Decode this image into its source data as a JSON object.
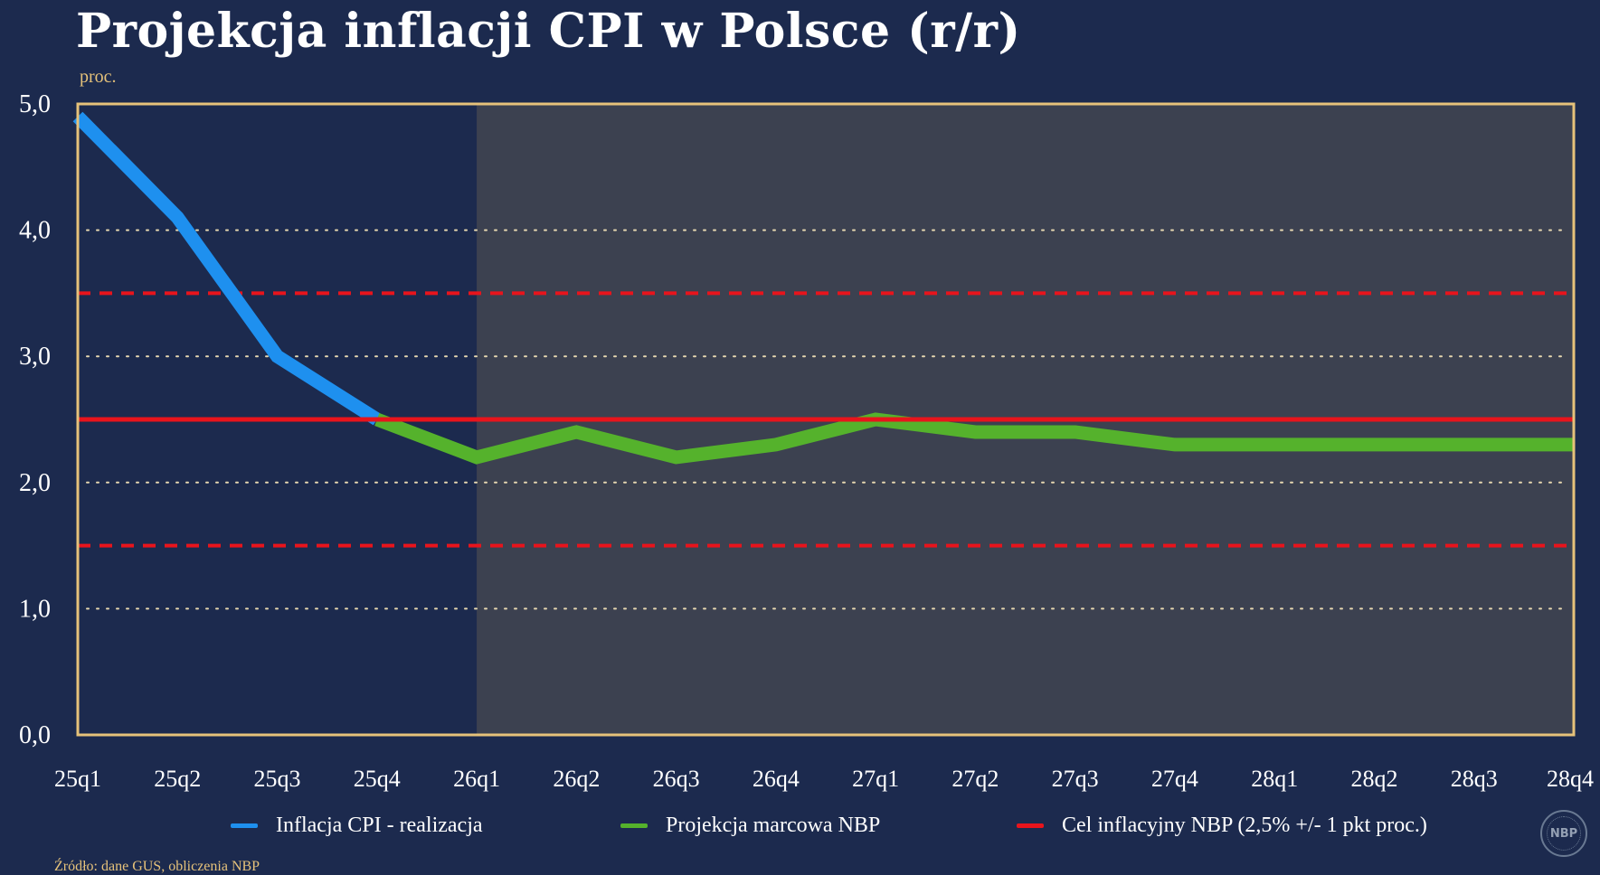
{
  "title": "Projekcja inflacji CPI w Polsce (r/r)",
  "unit": "proc.",
  "source": "Źródło: dane GUS, obliczenia NBP",
  "logo_text": "NBP",
  "colors": {
    "background": "#1c2a4e",
    "projection_area": "#3c4150",
    "frame": "#e6c27a",
    "grid": "#e6d7b0",
    "realization": "#1e90ef",
    "projection": "#55b22c",
    "target": "#e8141c"
  },
  "legend": [
    {
      "label": "Inflacja CPI - realizacja",
      "color": "#1e90ef"
    },
    {
      "label": "Projekcja marcowa NBP",
      "color": "#55b22c"
    },
    {
      "label": "Cel inflacyjny NBP (2,5% +/- 1 pkt proc.)",
      "color": "#e8141c"
    }
  ],
  "chart_data": {
    "type": "line",
    "categories": [
      "25q1",
      "25q2",
      "25q3",
      "25q4",
      "26q1",
      "26q2",
      "26q3",
      "26q4",
      "27q1",
      "27q2",
      "27q3",
      "27q4",
      "28q1",
      "28q2",
      "28q3",
      "28q4"
    ],
    "ylim": [
      0,
      5
    ],
    "yticks": [
      0,
      1,
      2,
      3,
      4,
      5
    ],
    "ytick_labels": [
      "0,0",
      "1,0",
      "2,0",
      "3,0",
      "4,0",
      "5,0"
    ],
    "grid": true,
    "legend_position": "bottom",
    "projection_start": "26q1",
    "series": [
      {
        "name": "Inflacja CPI - realizacja",
        "values": [
          4.9,
          4.1,
          3.0,
          2.5,
          null,
          null,
          null,
          null,
          null,
          null,
          null,
          null,
          null,
          null,
          null,
          null
        ]
      },
      {
        "name": "Projekcja marcowa NBP",
        "values": [
          null,
          null,
          null,
          2.5,
          2.2,
          2.4,
          2.2,
          2.3,
          2.5,
          2.4,
          2.4,
          2.3,
          2.3,
          2.3,
          2.3,
          2.3
        ]
      }
    ],
    "target": 2.5,
    "tolerance_band": [
      1.5,
      3.5
    ]
  }
}
